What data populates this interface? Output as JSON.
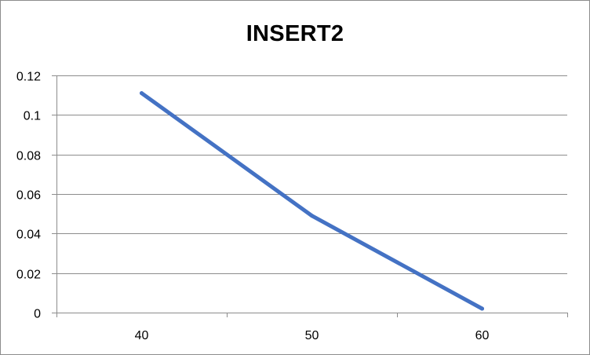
{
  "chart_data": {
    "type": "line",
    "title": "INSERT2",
    "xlabel": "",
    "ylabel": "",
    "categories": [
      "40",
      "50",
      "60"
    ],
    "series": [
      {
        "values": [
          0.111,
          0.049,
          0.002
        ],
        "color": "#4472C4"
      }
    ],
    "ylim": [
      0,
      0.12
    ],
    "yticks": [
      "0",
      "0.02",
      "0.04",
      "0.06",
      "0.08",
      "0.1",
      "0.12"
    ],
    "grid": true,
    "legend": "none"
  }
}
